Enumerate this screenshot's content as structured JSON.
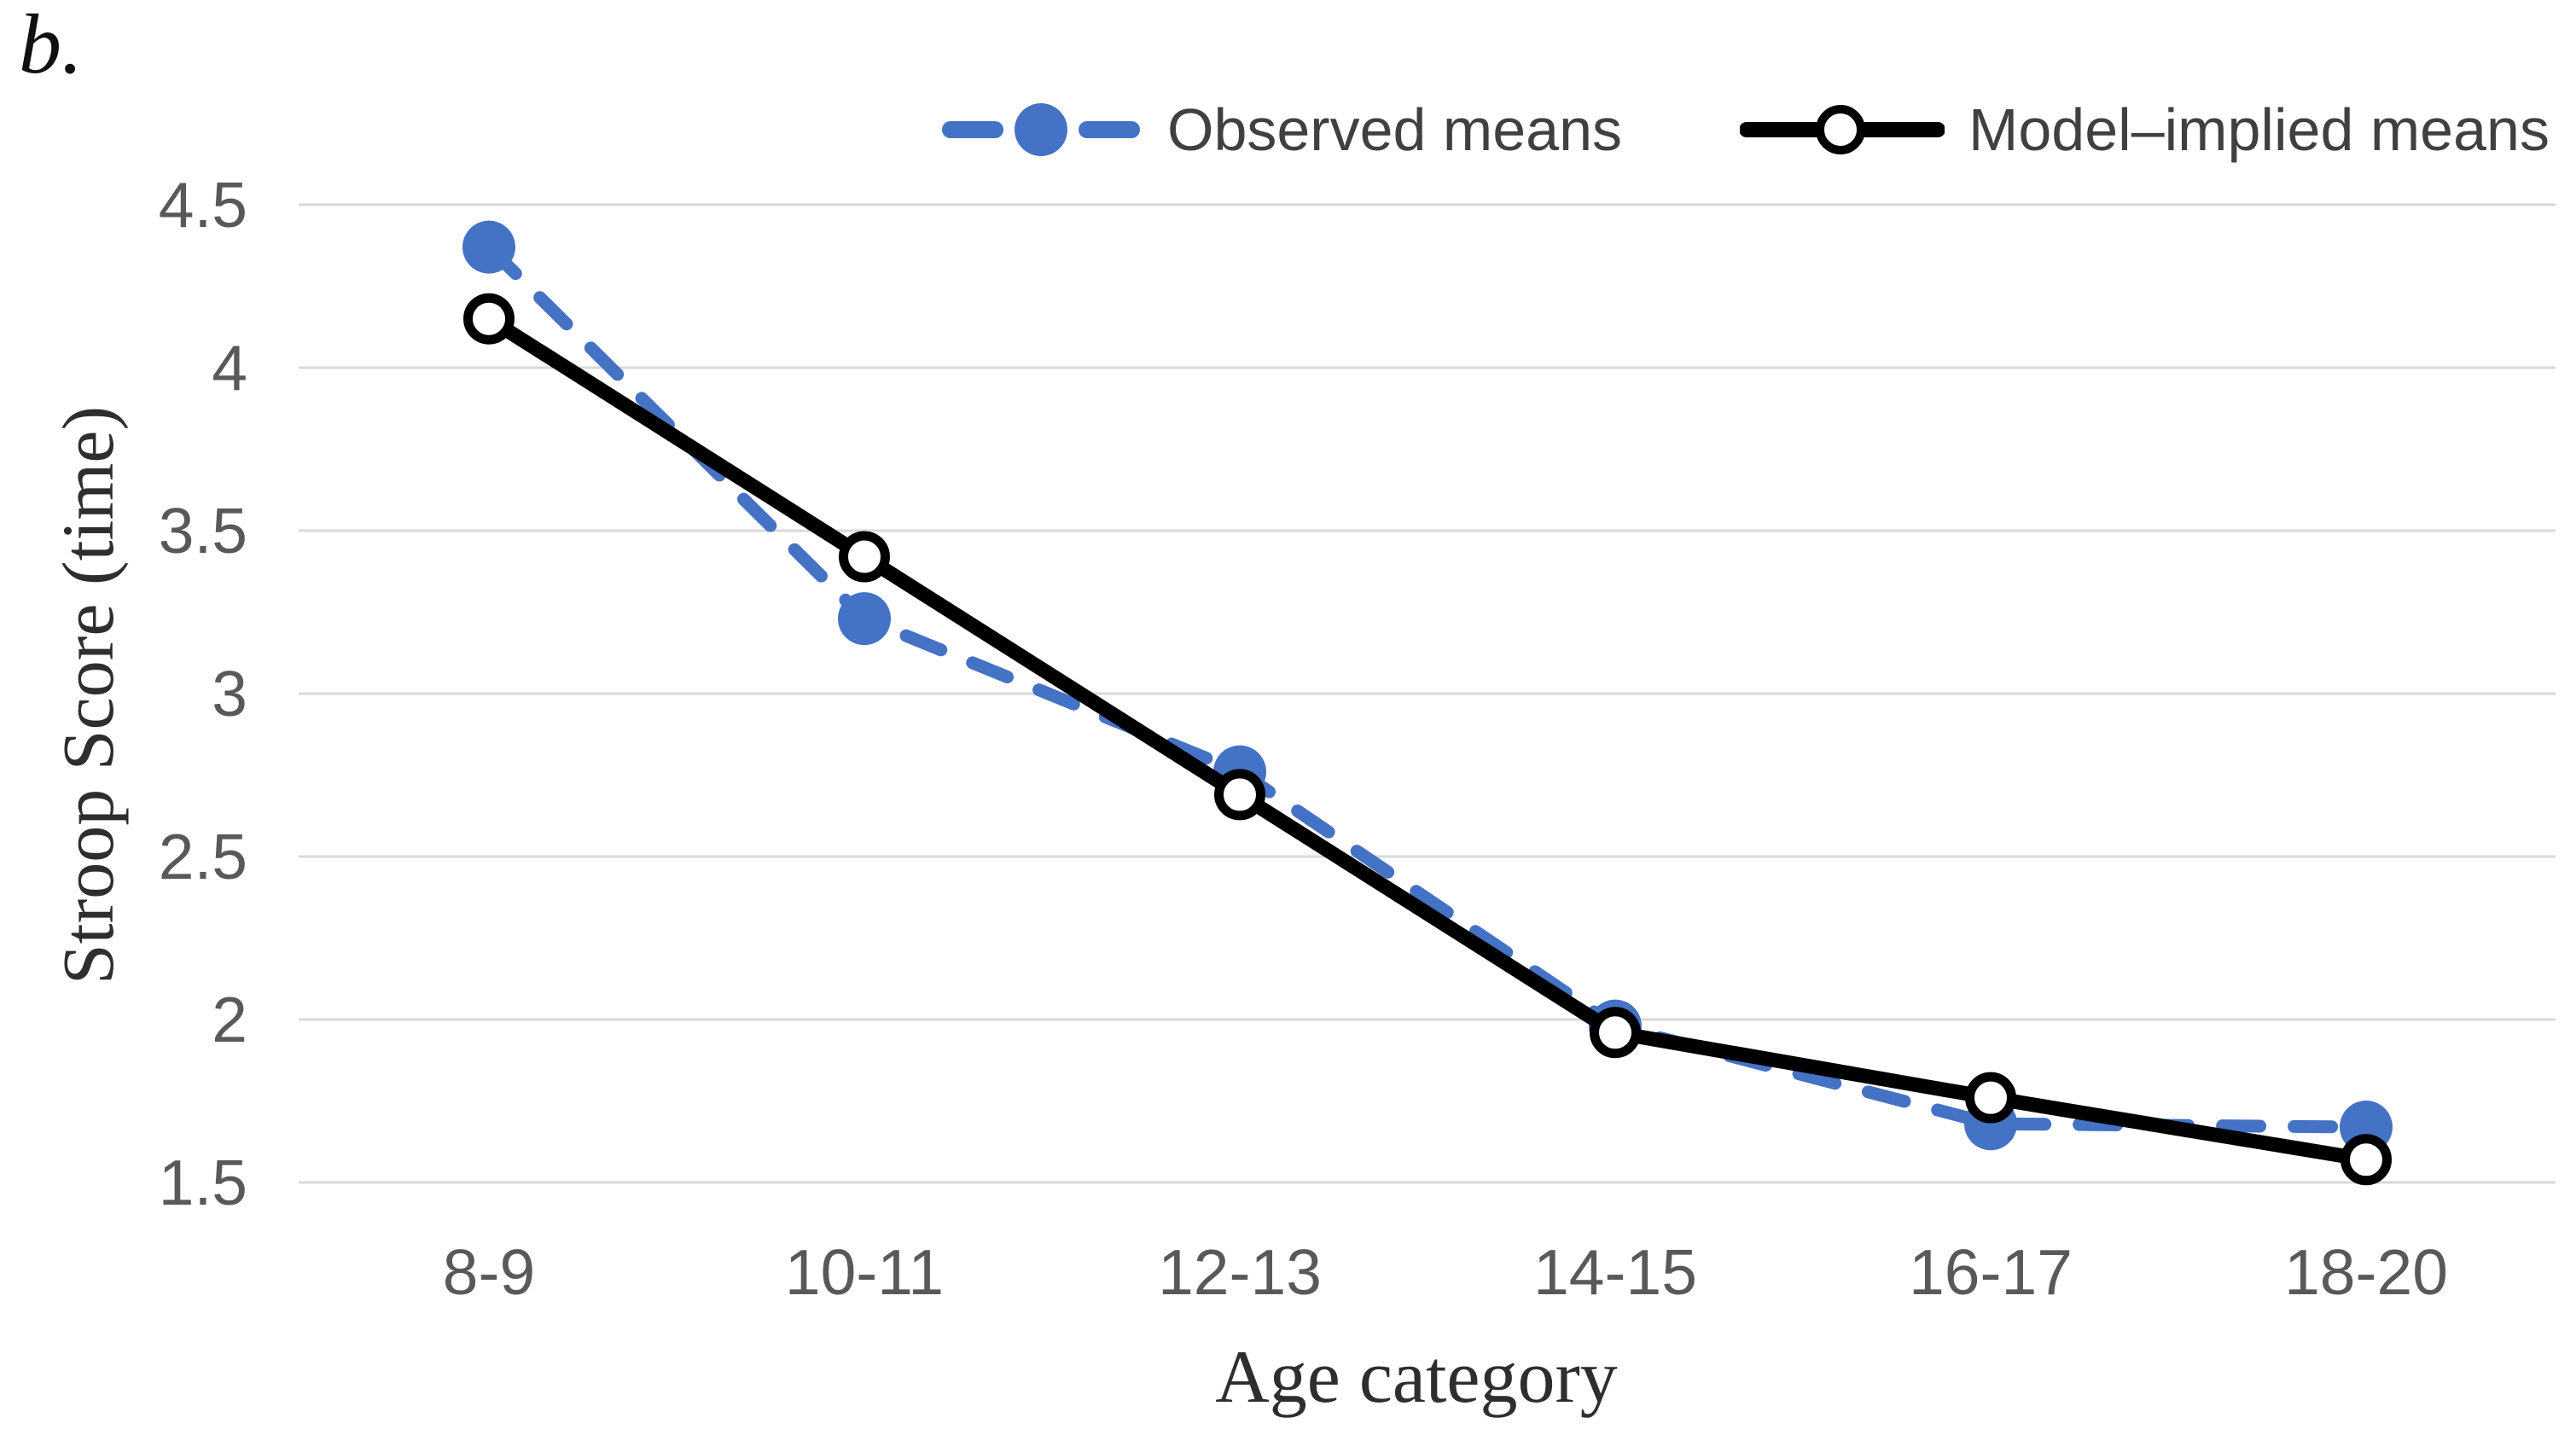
{
  "figure_label": "b.",
  "colors": {
    "observed_blue": "#4472C4",
    "model_black": "#000000",
    "gridline": "#D9D9D9",
    "tick_text": "#595959",
    "legend_text": "#404040",
    "title_text": "#2e2e2e",
    "background": "#ffffff"
  },
  "chart_data": {
    "type": "line",
    "title": "",
    "xlabel": "Age category",
    "ylabel": "Stroop Score (time)",
    "categories": [
      "8-9",
      "10-11",
      "12-13",
      "14-15",
      "16-17",
      "18-20"
    ],
    "series": [
      {
        "name": "Observed means",
        "values": [
          4.37,
          3.23,
          2.76,
          1.98,
          1.68,
          1.67
        ],
        "color": "#4472C4",
        "line_style": "dashed",
        "marker": "filled-circle"
      },
      {
        "name": "Model–implied means",
        "values": [
          4.15,
          3.42,
          2.69,
          1.96,
          1.76,
          1.57
        ],
        "color": "#000000",
        "line_style": "solid",
        "marker": "open-circle"
      }
    ],
    "yticks": [
      4.5,
      4,
      3.5,
      3,
      2.5,
      2,
      1.5
    ],
    "ylim": [
      1.3,
      4.75
    ],
    "grid": "horizontal",
    "legend_position": "top"
  }
}
